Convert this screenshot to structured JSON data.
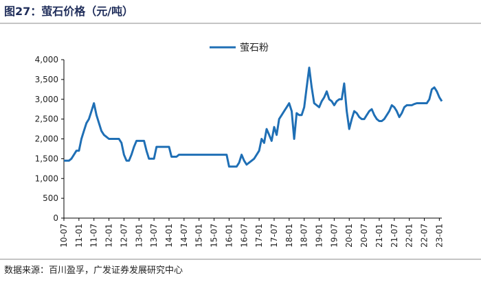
{
  "chart_data": {
    "type": "line",
    "title": "图27：萤石价格（元/吨）",
    "source": "数据来源：百川盈孚，广发证券发展研究中心",
    "categories": [
      "10-07",
      null,
      null,
      null,
      null,
      null,
      "11-01",
      null,
      null,
      null,
      null,
      null,
      "11-07",
      null,
      null,
      null,
      null,
      null,
      "12-01",
      null,
      null,
      null,
      null,
      null,
      "12-07",
      null,
      null,
      null,
      null,
      null,
      "13-01",
      null,
      null,
      null,
      null,
      null,
      "13-07",
      null,
      null,
      null,
      null,
      null,
      "14-01",
      null,
      null,
      null,
      null,
      null,
      "14-07",
      null,
      null,
      null,
      null,
      null,
      "15-01",
      null,
      null,
      null,
      null,
      null,
      "15-07",
      null,
      null,
      null,
      null,
      null,
      "16-01",
      null,
      null,
      null,
      null,
      null,
      "16-07",
      null,
      null,
      null,
      null,
      null,
      "17-01",
      null,
      null,
      null,
      null,
      null,
      "17-07",
      null,
      null,
      null,
      null,
      null,
      "18-01",
      null,
      null,
      null,
      null,
      null,
      "18-07",
      null,
      null,
      null,
      null,
      null,
      "19-01",
      null,
      null,
      null,
      null,
      null,
      "19-07",
      null,
      null,
      null,
      null,
      null,
      "20-01",
      null,
      null,
      null,
      null,
      null,
      "20-07",
      null,
      null,
      null,
      null,
      null,
      "21-01",
      null,
      null,
      null,
      null,
      null,
      "21-07",
      null,
      null,
      null,
      null,
      null,
      "22-01",
      null,
      null,
      null,
      null,
      null,
      "22-07",
      null,
      null,
      null,
      null,
      null,
      "23-01",
      null
    ],
    "series": [
      {
        "name": "萤石粉",
        "color": "#1f6fb5",
        "values": [
          1450,
          1450,
          1450,
          1500,
          1600,
          1700,
          1700,
          2000,
          2200,
          2400,
          2500,
          2700,
          2900,
          2600,
          2400,
          2200,
          2100,
          2050,
          2000,
          2000,
          2000,
          2000,
          2000,
          1900,
          1600,
          1450,
          1450,
          1600,
          1800,
          1950,
          1950,
          1950,
          1950,
          1700,
          1500,
          1500,
          1500,
          1800,
          1800,
          1800,
          1800,
          1800,
          1800,
          1550,
          1550,
          1550,
          1600,
          1600,
          1600,
          1600,
          1600,
          1600,
          1600,
          1600,
          1600,
          1600,
          1600,
          1600,
          1600,
          1600,
          1600,
          1600,
          1600,
          1600,
          1600,
          1600,
          1300,
          1300,
          1300,
          1300,
          1400,
          1600,
          1450,
          1350,
          1400,
          1450,
          1500,
          1600,
          1700,
          2000,
          1900,
          2250,
          2100,
          1950,
          2300,
          2100,
          2500,
          2600,
          2700,
          2800,
          2900,
          2700,
          2000,
          2650,
          2600,
          2600,
          2800,
          3300,
          3800,
          3300,
          2900,
          2850,
          2800,
          2950,
          3050,
          3200,
          3000,
          2950,
          2850,
          2950,
          3000,
          3000,
          3400,
          2700,
          2250,
          2500,
          2700,
          2650,
          2550,
          2500,
          2500,
          2600,
          2700,
          2750,
          2600,
          2500,
          2450,
          2450,
          2500,
          2600,
          2700,
          2850,
          2800,
          2700,
          2550,
          2650,
          2800,
          2850,
          2850,
          2850,
          2880,
          2900,
          2900,
          2900,
          2900,
          2900,
          3000,
          3250,
          3300,
          3200,
          3050,
          2950
        ]
      }
    ],
    "ylim": [
      0,
      4000
    ],
    "yticks": [
      0,
      500,
      {
        "value": 1000,
        "label": "1,000"
      },
      {
        "value": 1500,
        "label": "1,500"
      },
      {
        "value": 2000,
        "label": "2,000"
      },
      {
        "value": 2500,
        "label": "2,500"
      },
      {
        "value": 3000,
        "label": "3,000"
      },
      {
        "value": 3500,
        "label": "3,500"
      },
      {
        "value": 4000,
        "label": "4,000"
      }
    ],
    "grid": false,
    "legend": "top"
  }
}
